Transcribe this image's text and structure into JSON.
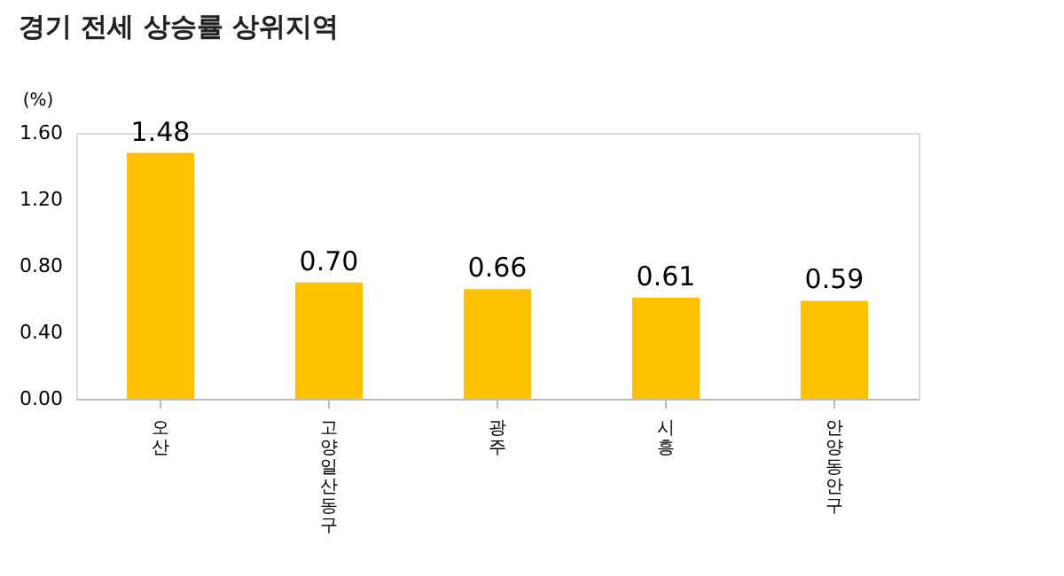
{
  "chart_data": {
    "type": "bar",
    "title": "경기 전세 상승률 상위지역",
    "ylabel": "(%)",
    "categories": [
      "오산",
      "고양 일산동구",
      "광주",
      "시흥",
      "안양 동안구"
    ],
    "values": [
      1.48,
      0.7,
      0.66,
      0.61,
      0.59
    ],
    "color": "#ffc000",
    "value_labels": [
      "1.48",
      "0.70",
      "0.66",
      "0.61",
      "0.59"
    ],
    "ylim": [
      0,
      1.6
    ],
    "yticks": [
      {
        "value": 0,
        "label": "0.00"
      },
      {
        "value": 0.4,
        "label": "0.40"
      },
      {
        "value": 0.8,
        "label": "0.80"
      },
      {
        "value": 1.2,
        "label": "1.20"
      },
      {
        "value": 1.6,
        "label": "1.60"
      }
    ],
    "grid": false
  }
}
